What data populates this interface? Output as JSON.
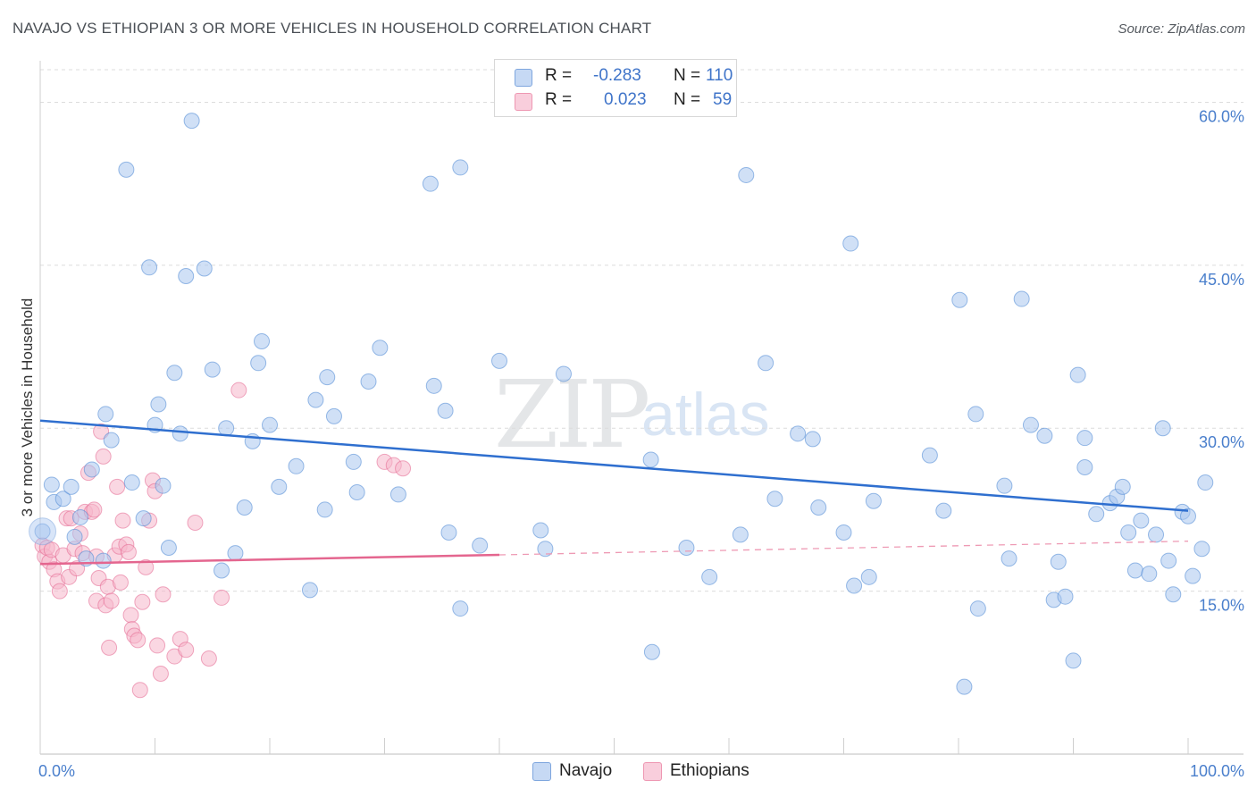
{
  "title": "NAVAJO VS ETHIOPIAN 3 OR MORE VEHICLES IN HOUSEHOLD CORRELATION CHART",
  "source": "Source: ZipAtlas.com",
  "watermark": {
    "zip": "ZIP",
    "atlas": "atlas"
  },
  "legend": {
    "rows": [
      {
        "r_label": "R =",
        "r_value": "-0.283",
        "n_label": "N =",
        "n_value": "110",
        "color": "#a9c6ef"
      },
      {
        "r_label": "R =",
        "r_value": "0.023",
        "n_label": "N =",
        "n_value": "59",
        "color": "#f6b7cb"
      }
    ]
  },
  "bottom_legend": [
    {
      "label": "Navajo",
      "color": "#a9c6ef"
    },
    {
      "label": "Ethiopians",
      "color": "#f6b7cb"
    }
  ],
  "chart_data": {
    "type": "scatter",
    "title": "NAVAJO VS ETHIOPIAN 3 OR MORE VEHICLES IN HOUSEHOLD CORRELATION CHART",
    "xlabel": "",
    "ylabel": "3 or more Vehicles in Household",
    "xlim": [
      0,
      100
    ],
    "ylim": [
      0,
      63
    ],
    "x_tick_labels": [
      "0.0%",
      "100.0%"
    ],
    "y_ticks": [
      15,
      30,
      45,
      60
    ],
    "y_tick_labels": [
      "15.0%",
      "30.0%",
      "45.0%",
      "60.0%"
    ],
    "series": [
      {
        "name": "Navajo",
        "color": "#4a86d4",
        "fill": "#a9c6ef",
        "trend": {
          "x": [
            0,
            100
          ],
          "y": [
            30.7,
            22.4
          ],
          "dashed_from": null
        },
        "points": [
          [
            0.2,
            20.5
          ],
          [
            1,
            24.8
          ],
          [
            1.2,
            23.2
          ],
          [
            2,
            23.5
          ],
          [
            2.7,
            24.6
          ],
          [
            3,
            20
          ],
          [
            3.5,
            21.8
          ],
          [
            4,
            18
          ],
          [
            4.5,
            26.2
          ],
          [
            5.5,
            17.8
          ],
          [
            5.7,
            31.3
          ],
          [
            6.2,
            28.9
          ],
          [
            7.5,
            53.8
          ],
          [
            8,
            25
          ],
          [
            9,
            21.7
          ],
          [
            9.5,
            44.8
          ],
          [
            10,
            30.3
          ],
          [
            10.3,
            32.2
          ],
          [
            10.7,
            24.7
          ],
          [
            11.2,
            19
          ],
          [
            11.7,
            35.1
          ],
          [
            12.2,
            29.5
          ],
          [
            12.7,
            44
          ],
          [
            13.2,
            58.3
          ],
          [
            14.3,
            44.7
          ],
          [
            15,
            35.4
          ],
          [
            15.8,
            16.9
          ],
          [
            16.2,
            30
          ],
          [
            17,
            18.5
          ],
          [
            17.8,
            22.7
          ],
          [
            18.5,
            28.8
          ],
          [
            19,
            36
          ],
          [
            19.3,
            38
          ],
          [
            20,
            30.3
          ],
          [
            20.8,
            24.6
          ],
          [
            22.3,
            26.5
          ],
          [
            23.5,
            15.1
          ],
          [
            24,
            32.6
          ],
          [
            24.8,
            22.5
          ],
          [
            25,
            34.7
          ],
          [
            25.6,
            31.1
          ],
          [
            27.3,
            26.9
          ],
          [
            27.6,
            24.1
          ],
          [
            28.6,
            34.3
          ],
          [
            29.6,
            37.4
          ],
          [
            31.2,
            23.9
          ],
          [
            34,
            52.5
          ],
          [
            34.3,
            33.9
          ],
          [
            35.3,
            31.6
          ],
          [
            35.6,
            20.4
          ],
          [
            36.6,
            13.4
          ],
          [
            36.6,
            54
          ],
          [
            38.3,
            19.2
          ],
          [
            40,
            36.2
          ],
          [
            43.6,
            20.6
          ],
          [
            44,
            18.9
          ],
          [
            45.6,
            35
          ],
          [
            53.2,
            27.1
          ],
          [
            53.3,
            9.4
          ],
          [
            56.3,
            19
          ],
          [
            58.3,
            16.3
          ],
          [
            61,
            20.2
          ],
          [
            61.5,
            53.3
          ],
          [
            63.2,
            36
          ],
          [
            64,
            23.5
          ],
          [
            66,
            29.5
          ],
          [
            67.3,
            29
          ],
          [
            67.8,
            22.7
          ],
          [
            70,
            20.4
          ],
          [
            70.6,
            47
          ],
          [
            70.9,
            15.5
          ],
          [
            72.2,
            16.3
          ],
          [
            72.6,
            23.3
          ],
          [
            77.5,
            27.5
          ],
          [
            78.7,
            22.4
          ],
          [
            80.1,
            41.8
          ],
          [
            80.5,
            6.2
          ],
          [
            81.5,
            31.3
          ],
          [
            81.7,
            13.4
          ],
          [
            84,
            24.7
          ],
          [
            84.4,
            18
          ],
          [
            85.5,
            41.9
          ],
          [
            86.3,
            30.3
          ],
          [
            87.5,
            29.3
          ],
          [
            88.3,
            14.2
          ],
          [
            88.7,
            17.7
          ],
          [
            89.3,
            14.5
          ],
          [
            90,
            8.6
          ],
          [
            90.4,
            34.9
          ],
          [
            91,
            26.4
          ],
          [
            91,
            29.1
          ],
          [
            92,
            22.1
          ],
          [
            93.2,
            23.1
          ],
          [
            93.8,
            23.7
          ],
          [
            94.3,
            24.6
          ],
          [
            94.8,
            20.4
          ],
          [
            95.4,
            16.9
          ],
          [
            95.9,
            21.5
          ],
          [
            96.6,
            16.6
          ],
          [
            97.2,
            20.2
          ],
          [
            97.8,
            30
          ],
          [
            98.3,
            17.8
          ],
          [
            98.7,
            14.7
          ],
          [
            99.5,
            22.3
          ],
          [
            100,
            21.9
          ],
          [
            100.4,
            16.4
          ],
          [
            101.2,
            18.9
          ],
          [
            101.5,
            25
          ]
        ]
      },
      {
        "name": "Ethiopians",
        "color": "#e4668f",
        "fill": "#f6b7cb",
        "trend": {
          "x": [
            0,
            100
          ],
          "y": [
            17.5,
            19.6
          ],
          "dashed_from": 40
        },
        "points": [
          [
            0.2,
            19.2
          ],
          [
            0.4,
            18.2
          ],
          [
            0.6,
            19
          ],
          [
            0.8,
            17.7
          ],
          [
            1,
            18.8
          ],
          [
            1.2,
            17
          ],
          [
            1.5,
            15.9
          ],
          [
            1.7,
            15
          ],
          [
            2,
            18.3
          ],
          [
            2.3,
            21.7
          ],
          [
            2.5,
            16.3
          ],
          [
            2.7,
            21.7
          ],
          [
            3,
            18.9
          ],
          [
            3.2,
            17.1
          ],
          [
            3.5,
            20.3
          ],
          [
            3.7,
            18.5
          ],
          [
            3.9,
            22.3
          ],
          [
            4.2,
            25.9
          ],
          [
            4.5,
            22.3
          ],
          [
            4.7,
            22.5
          ],
          [
            4.9,
            18.2
          ],
          [
            4.9,
            14.1
          ],
          [
            5.1,
            16.2
          ],
          [
            5.3,
            29.7
          ],
          [
            5.5,
            27.4
          ],
          [
            5.7,
            13.7
          ],
          [
            5.9,
            15.4
          ],
          [
            6,
            9.8
          ],
          [
            6.2,
            14.1
          ],
          [
            6.5,
            18.3
          ],
          [
            6.7,
            24.6
          ],
          [
            6.9,
            19.1
          ],
          [
            7,
            15.8
          ],
          [
            7.2,
            21.5
          ],
          [
            7.5,
            19.3
          ],
          [
            7.7,
            18.6
          ],
          [
            7.9,
            12.8
          ],
          [
            8,
            11.5
          ],
          [
            8.2,
            10.9
          ],
          [
            8.5,
            10.5
          ],
          [
            8.7,
            5.9
          ],
          [
            8.9,
            14
          ],
          [
            9.2,
            17.2
          ],
          [
            9.5,
            21.5
          ],
          [
            9.8,
            25.2
          ],
          [
            10,
            24.2
          ],
          [
            10.2,
            10
          ],
          [
            10.5,
            7.4
          ],
          [
            10.7,
            14.7
          ],
          [
            11.7,
            9
          ],
          [
            12.2,
            10.6
          ],
          [
            12.7,
            9.6
          ],
          [
            13.5,
            21.3
          ],
          [
            14.7,
            8.8
          ],
          [
            15.8,
            14.4
          ],
          [
            17.3,
            33.5
          ],
          [
            30,
            26.9
          ],
          [
            30.8,
            26.6
          ],
          [
            31.6,
            26.3
          ]
        ]
      }
    ]
  }
}
